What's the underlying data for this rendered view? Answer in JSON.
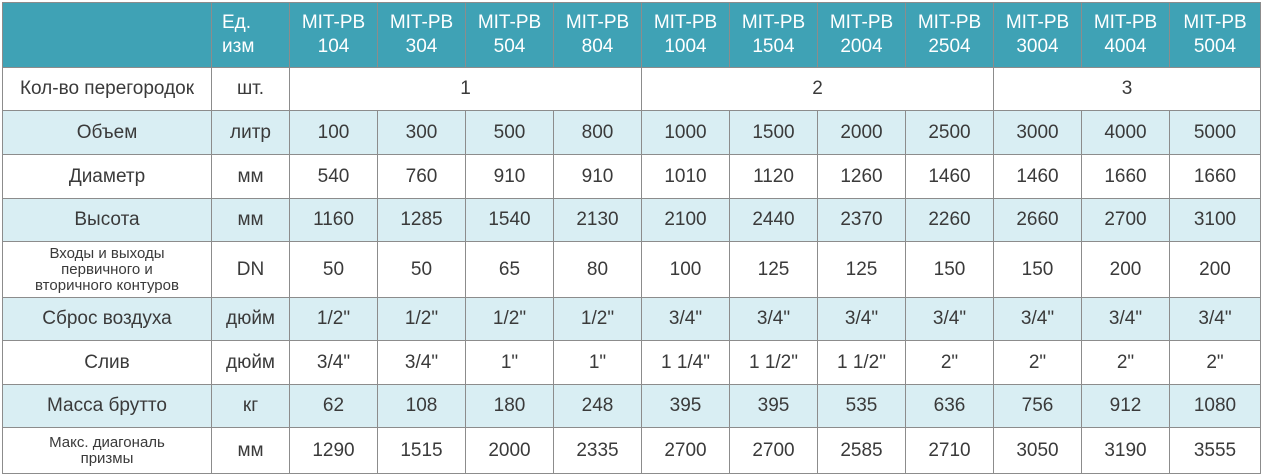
{
  "header": {
    "unit_line1": "Ед.",
    "unit_line2": "изм",
    "models": [
      {
        "line1": "MIT-PB",
        "line2": "104"
      },
      {
        "line1": "MIT-PB",
        "line2": "304"
      },
      {
        "line1": "MIT-PB",
        "line2": "504"
      },
      {
        "line1": "MIT-PB",
        "line2": "804"
      },
      {
        "line1": "MIT-PB",
        "line2": "1004"
      },
      {
        "line1": "MIT-PB",
        "line2": "1504"
      },
      {
        "line1": "MIT-PB",
        "line2": "2004"
      },
      {
        "line1": "MIT-PB",
        "line2": "2504"
      },
      {
        "line1": "MIT-PB",
        "line2": "3004"
      },
      {
        "line1": "MIT-PB",
        "line2": "4004"
      },
      {
        "line1": "MIT-PB",
        "line2": "5004"
      }
    ]
  },
  "rows": {
    "partitions": {
      "label": "Кол-во перегородок",
      "unit": "шт.",
      "groups": [
        "1",
        "2",
        "3"
      ]
    },
    "volume": {
      "label": "Объем",
      "unit": "литр",
      "values": [
        "100",
        "300",
        "500",
        "800",
        "1000",
        "1500",
        "2000",
        "2500",
        "3000",
        "4000",
        "5000"
      ]
    },
    "diameter": {
      "label": "Диаметр",
      "unit": "мм",
      "values": [
        "540",
        "760",
        "910",
        "910",
        "1010",
        "1120",
        "1260",
        "1460",
        "1460",
        "1660",
        "1660"
      ]
    },
    "height": {
      "label": "Высота",
      "unit": "мм",
      "values": [
        "1160",
        "1285",
        "1540",
        "2130",
        "2100",
        "2440",
        "2370",
        "2260",
        "2660",
        "2700",
        "3100"
      ]
    },
    "inout": {
      "label_line1": "Входы и выходы",
      "label_line2": "первичного и",
      "label_line3": "вторичного контуров",
      "unit": "DN",
      "values": [
        "50",
        "50",
        "65",
        "80",
        "100",
        "125",
        "125",
        "150",
        "150",
        "200",
        "200"
      ]
    },
    "air": {
      "label": "Сброс воздуха",
      "unit": "дюйм",
      "values": [
        "1/2\"",
        "1/2\"",
        "1/2\"",
        "1/2\"",
        "3/4\"",
        "3/4\"",
        "3/4\"",
        "3/4\"",
        "3/4\"",
        "3/4\"",
        "3/4\""
      ]
    },
    "drain": {
      "label": "Слив",
      "unit": "дюйм",
      "values": [
        "3/4\"",
        "3/4\"",
        "1\"",
        "1\"",
        "1 1/4\"",
        "1 1/2\"",
        "1 1/2\"",
        "2\"",
        "2\"",
        "2\"",
        "2\""
      ]
    },
    "mass": {
      "label": "Масса брутто",
      "unit": "кг",
      "values": [
        "62",
        "108",
        "180",
        "248",
        "395",
        "395",
        "535",
        "636",
        "756",
        "912",
        "1080"
      ]
    },
    "diagonal": {
      "label_line1": "Макс. диагональ",
      "label_line2": "призмы",
      "unit": "мм",
      "values": [
        "1290",
        "1515",
        "2000",
        "2335",
        "2700",
        "2700",
        "2585",
        "2710",
        "3050",
        "3190",
        "3555"
      ]
    }
  }
}
